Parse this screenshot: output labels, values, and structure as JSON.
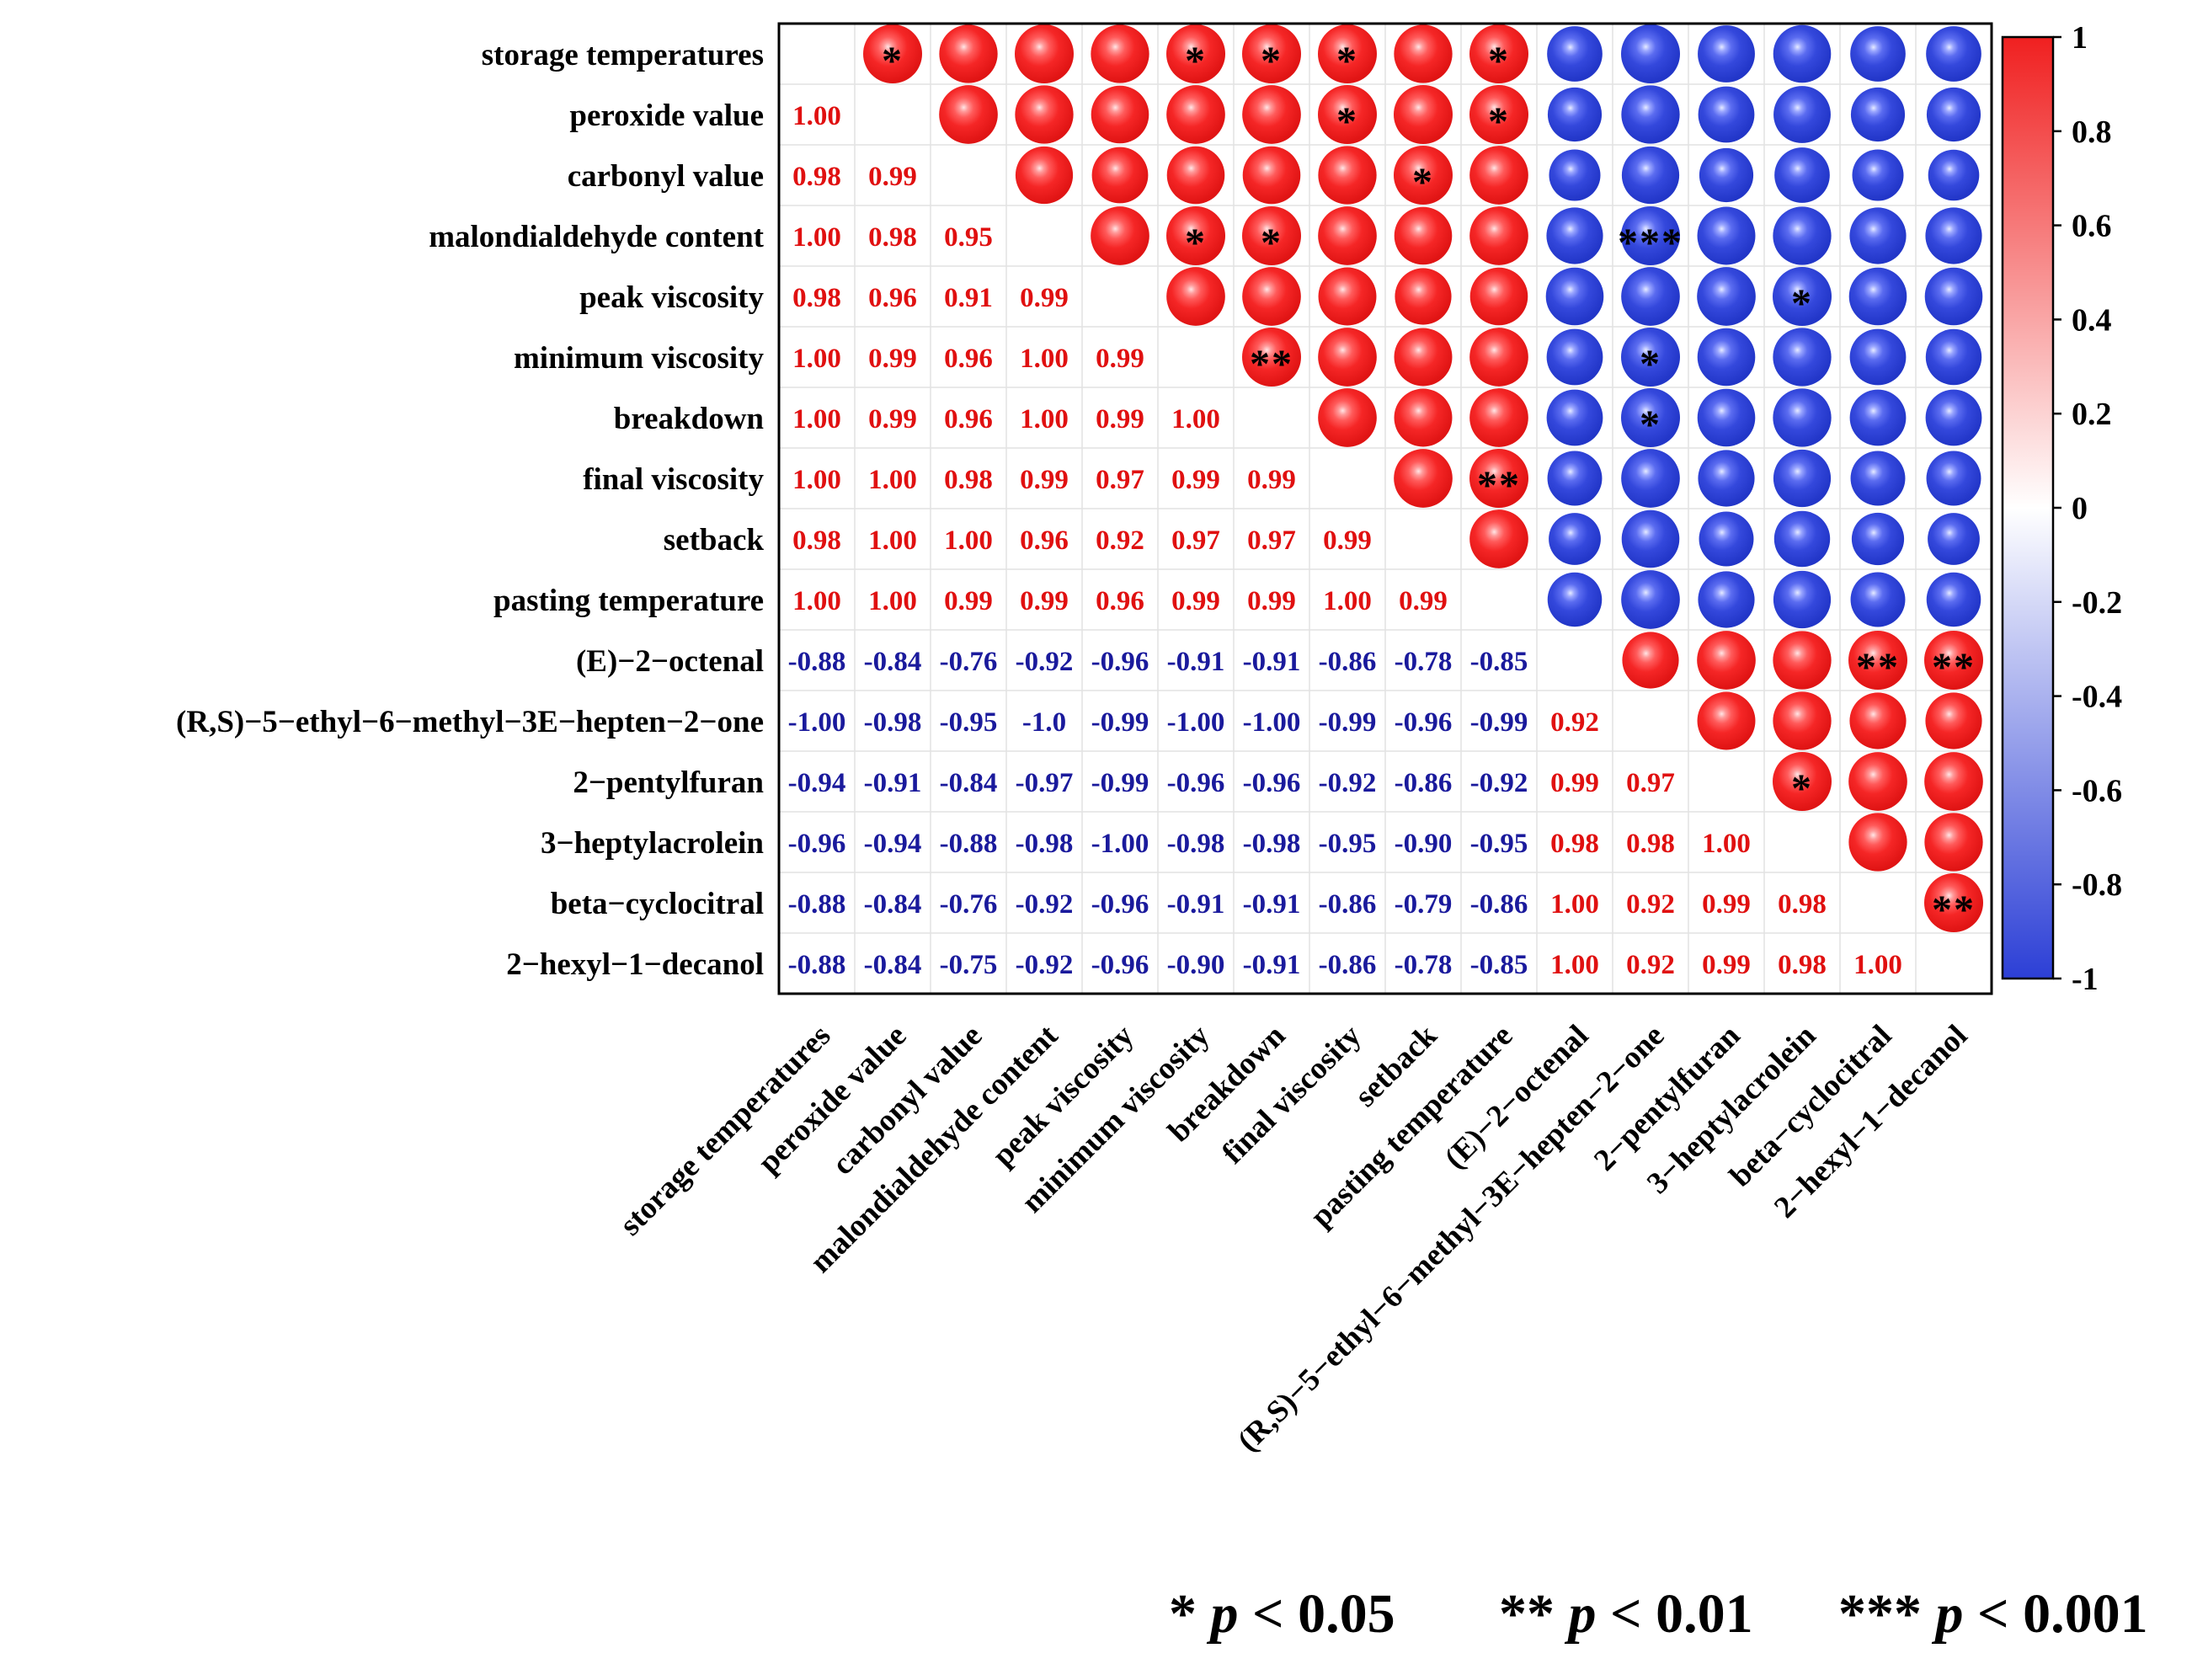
{
  "chart_data": {
    "type": "heatmap",
    "variables": [
      "storage temperatures",
      "peroxide value",
      "carbonyl value",
      "malondialdehyde content",
      "peak viscosity",
      "minimum viscosity",
      "breakdown",
      "final viscosity",
      "setback",
      "pasting temperature",
      "(E)−2−octenal",
      "(R,S)−5−ethyl−6−methyl−3E−hepten−2−one",
      "2−pentylfuran",
      "3−heptylacrolein",
      "beta−cyclocitral",
      "2−hexyl−1−decanol"
    ],
    "lower_triangle_labels": [
      [],
      [
        "1.00"
      ],
      [
        "0.98",
        "0.99"
      ],
      [
        "1.00",
        "0.98",
        "0.95"
      ],
      [
        "0.98",
        "0.96",
        "0.91",
        "0.99"
      ],
      [
        "1.00",
        "0.99",
        "0.96",
        "1.00",
        "0.99"
      ],
      [
        "1.00",
        "0.99",
        "0.96",
        "1.00",
        "0.99",
        "1.00"
      ],
      [
        "1.00",
        "1.00",
        "0.98",
        "0.99",
        "0.97",
        "0.99",
        "0.99"
      ],
      [
        "0.98",
        "1.00",
        "1.00",
        "0.96",
        "0.92",
        "0.97",
        "0.97",
        "0.99"
      ],
      [
        "1.00",
        "1.00",
        "0.99",
        "0.99",
        "0.96",
        "0.99",
        "0.99",
        "1.00",
        "0.99"
      ],
      [
        "-0.88",
        "-0.84",
        "-0.76",
        "-0.92",
        "-0.96",
        "-0.91",
        "-0.91",
        "-0.86",
        "-0.78",
        "-0.85"
      ],
      [
        "-1.00",
        "-0.98",
        "-0.95",
        "-1.0",
        "-0.99",
        "-1.00",
        "-1.00",
        "-0.99",
        "-0.96",
        "-0.99",
        "0.92"
      ],
      [
        "-0.94",
        "-0.91",
        "-0.84",
        "-0.97",
        "-0.99",
        "-0.96",
        "-0.96",
        "-0.92",
        "-0.86",
        "-0.92",
        "0.99",
        "0.97"
      ],
      [
        "-0.96",
        "-0.94",
        "-0.88",
        "-0.98",
        "-1.00",
        "-0.98",
        "-0.98",
        "-0.95",
        "-0.90",
        "-0.95",
        "0.98",
        "0.98",
        "1.00"
      ],
      [
        "-0.88",
        "-0.84",
        "-0.76",
        "-0.92",
        "-0.96",
        "-0.91",
        "-0.91",
        "-0.86",
        "-0.79",
        "-0.86",
        "1.00",
        "0.92",
        "0.99",
        "0.98"
      ],
      [
        "-0.88",
        "-0.84",
        "-0.75",
        "-0.92",
        "-0.96",
        "-0.90",
        "-0.91",
        "-0.86",
        "-0.78",
        "-0.85",
        "1.00",
        "0.92",
        "0.99",
        "0.98",
        "1.00"
      ]
    ],
    "significance": [
      {
        "row": 0,
        "col": 1,
        "stars": "*"
      },
      {
        "row": 0,
        "col": 5,
        "stars": "*"
      },
      {
        "row": 0,
        "col": 6,
        "stars": "*"
      },
      {
        "row": 0,
        "col": 7,
        "stars": "*"
      },
      {
        "row": 0,
        "col": 9,
        "stars": "*"
      },
      {
        "row": 1,
        "col": 7,
        "stars": "*"
      },
      {
        "row": 1,
        "col": 9,
        "stars": "*"
      },
      {
        "row": 2,
        "col": 8,
        "stars": "*"
      },
      {
        "row": 3,
        "col": 5,
        "stars": "*"
      },
      {
        "row": 3,
        "col": 6,
        "stars": "*"
      },
      {
        "row": 3,
        "col": 11,
        "stars": "***"
      },
      {
        "row": 4,
        "col": 13,
        "stars": "*"
      },
      {
        "row": 5,
        "col": 6,
        "stars": "**"
      },
      {
        "row": 5,
        "col": 11,
        "stars": "*"
      },
      {
        "row": 6,
        "col": 11,
        "stars": "*"
      },
      {
        "row": 7,
        "col": 9,
        "stars": "**"
      },
      {
        "row": 10,
        "col": 14,
        "stars": "**"
      },
      {
        "row": 10,
        "col": 15,
        "stars": "**"
      },
      {
        "row": 12,
        "col": 13,
        "stars": "*"
      },
      {
        "row": 14,
        "col": 15,
        "stars": "**"
      }
    ],
    "colorbar": {
      "range": [
        -1,
        1
      ],
      "ticks": [
        "1",
        "0.8",
        "0.6",
        "0.4",
        "0.2",
        "0",
        "-0.2",
        "-0.4",
        "-0.6",
        "-0.8",
        "-1"
      ],
      "colors": {
        "positive": "#f02020",
        "zero": "#ffffff",
        "negative": "#2c3fd6"
      }
    },
    "legend": [
      {
        "stars": "*",
        "p": "p",
        "text": " < 0.05"
      },
      {
        "stars": "**",
        "p": "p",
        "text": " < 0.01"
      },
      {
        "stars": "***",
        "p": "p",
        "text": " < 0.001"
      }
    ],
    "colors": {
      "positive_text": "#e01010",
      "negative_text": "#1a1a9c"
    }
  }
}
